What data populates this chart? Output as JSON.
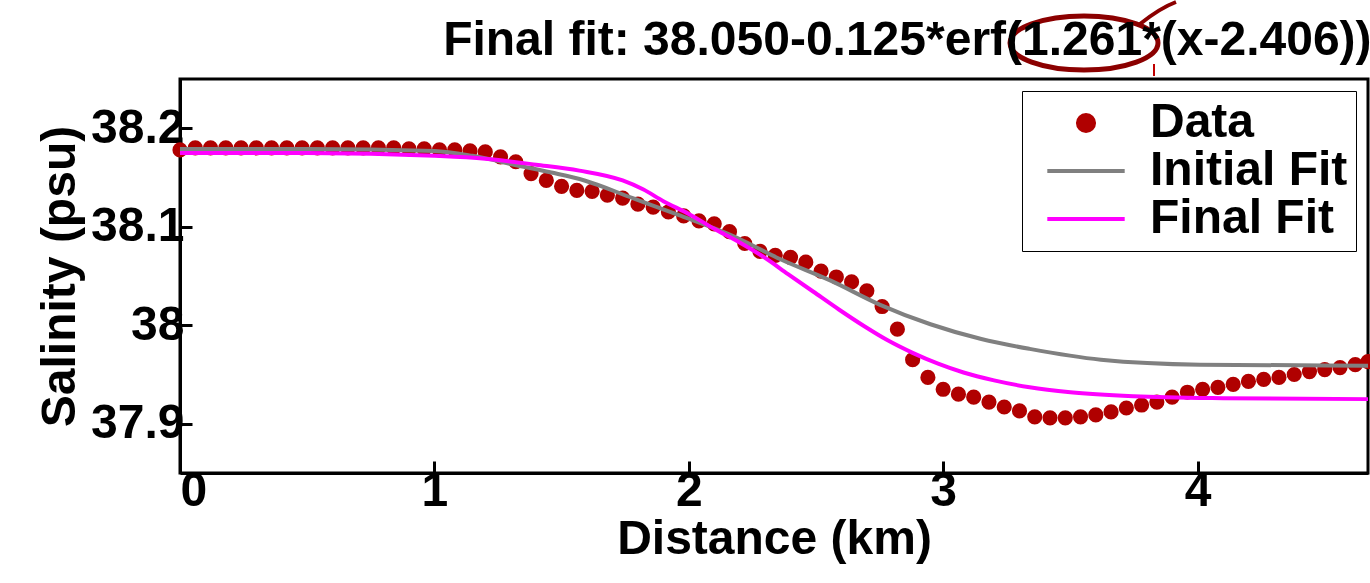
{
  "chart_data": {
    "type": "line",
    "title": "Final fit: 38.050-0.125*erf(1.261*(x-2.406))",
    "xlabel": "Distance (km)",
    "ylabel": "Salinity (psu)",
    "xlim": [
      0,
      4.67
    ],
    "xticks": [
      0,
      1,
      2,
      3,
      4
    ],
    "ylim": [
      37.85,
      38.25
    ],
    "yticks": [
      37.9,
      38,
      38.1,
      38.2
    ],
    "grid": false,
    "legend": "top right",
    "series": [
      {
        "name": "Data",
        "type": "scatter",
        "marker": "circle",
        "color": "#b00000",
        "x": [
          0,
          0.06,
          0.12,
          0.18,
          0.24,
          0.3,
          0.36,
          0.42,
          0.48,
          0.54,
          0.6,
          0.66,
          0.72,
          0.78,
          0.84,
          0.9,
          0.96,
          1.02,
          1.08,
          1.14,
          1.2,
          1.26,
          1.32,
          1.38,
          1.44,
          1.5,
          1.56,
          1.62,
          1.68,
          1.74,
          1.8,
          1.86,
          1.92,
          1.98,
          2.04,
          2.1,
          2.16,
          2.22,
          2.28,
          2.34,
          2.4,
          2.46,
          2.52,
          2.58,
          2.64,
          2.7,
          2.76,
          2.82,
          2.88,
          2.94,
          3.0,
          3.06,
          3.12,
          3.18,
          3.24,
          3.3,
          3.36,
          3.42,
          3.48,
          3.54,
          3.6,
          3.66,
          3.72,
          3.78,
          3.84,
          3.9,
          3.96,
          4.02,
          4.08,
          4.14,
          4.2,
          4.26,
          4.32,
          4.38,
          4.44,
          4.5,
          4.56,
          4.62,
          4.67
        ],
        "values": [
          38.178,
          38.18,
          38.18,
          38.18,
          38.18,
          38.18,
          38.18,
          38.18,
          38.18,
          38.18,
          38.18,
          38.18,
          38.18,
          38.18,
          38.18,
          38.179,
          38.179,
          38.178,
          38.178,
          38.177,
          38.176,
          38.171,
          38.166,
          38.154,
          38.147,
          38.141,
          38.137,
          38.136,
          38.132,
          38.129,
          38.123,
          38.12,
          38.115,
          38.111,
          38.106,
          38.103,
          38.095,
          38.083,
          38.075,
          38.071,
          38.069,
          38.064,
          38.055,
          38.049,
          38.044,
          38.035,
          38.019,
          37.996,
          37.965,
          37.947,
          37.935,
          37.93,
          37.927,
          37.922,
          37.917,
          37.913,
          37.907,
          37.906,
          37.906,
          37.907,
          37.909,
          37.912,
          37.916,
          37.919,
          37.922,
          37.927,
          37.932,
          37.935,
          37.937,
          37.94,
          37.943,
          37.945,
          37.947,
          37.95,
          37.953,
          37.955,
          37.957,
          37.96,
          37.963
        ]
      },
      {
        "name": "Initial Fit",
        "color": "#808080",
        "x": [
          0,
          0.5,
          1.0,
          1.15,
          1.33,
          1.46,
          1.59,
          1.78,
          1.97,
          2.17,
          2.36,
          2.56,
          2.75,
          2.95,
          3.15,
          3.34,
          3.62,
          4.01,
          4.67
        ],
        "values": [
          38.179,
          38.179,
          38.177,
          38.172,
          38.162,
          38.155,
          38.147,
          38.129,
          38.111,
          38.091,
          38.067,
          38.045,
          38.021,
          38.001,
          37.986,
          37.976,
          37.965,
          37.96,
          37.959
        ]
      },
      {
        "name": "Final Fit",
        "color": "#ff00ff",
        "x": [
          0,
          0.5,
          1.0,
          1.2,
          1.4,
          1.57,
          1.74,
          1.82,
          1.9,
          2.0,
          2.1,
          2.2,
          2.29,
          2.39,
          2.49,
          2.59,
          2.69,
          2.78,
          2.88,
          2.98,
          3.08,
          3.2,
          3.34,
          3.5,
          3.75,
          4.1,
          4.67
        ],
        "values": [
          38.175,
          38.175,
          38.172,
          38.169,
          38.163,
          38.157,
          38.147,
          38.138,
          38.126,
          38.113,
          38.098,
          38.084,
          38.07,
          38.052,
          38.034,
          38.016,
          37.999,
          37.985,
          37.972,
          37.961,
          37.952,
          37.944,
          37.937,
          37.932,
          37.928,
          37.926,
          37.925
        ]
      }
    ]
  }
}
